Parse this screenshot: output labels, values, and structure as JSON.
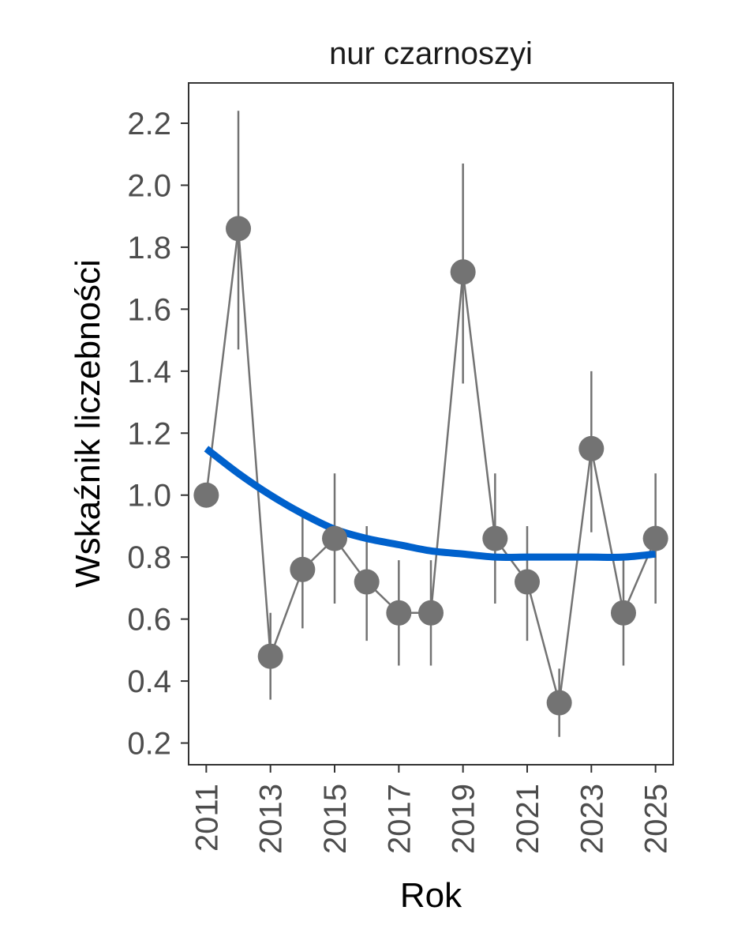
{
  "chart_data": {
    "type": "line",
    "title": "nur czarnoszyi",
    "xlabel": "Rok",
    "ylabel": "Wskaźnik liczebności",
    "xlim": [
      2010.45,
      2025.55
    ],
    "ylim": [
      0.13,
      2.33
    ],
    "x_ticks": [
      2011,
      2013,
      2015,
      2017,
      2019,
      2021,
      2023,
      2025
    ],
    "x_tick_labels": [
      "2011",
      "2013",
      "2015",
      "2017",
      "2019",
      "2021",
      "2023",
      "2025"
    ],
    "y_ticks": [
      0.2,
      0.4,
      0.6,
      0.8,
      1.0,
      1.2,
      1.4,
      1.6,
      1.8,
      2.0,
      2.2
    ],
    "y_tick_labels": [
      "0.2",
      "0.4",
      "0.6",
      "0.8",
      "1.0",
      "1.2",
      "1.4",
      "1.6",
      "1.8",
      "2.0",
      "2.2"
    ],
    "grid": false,
    "colors": {
      "points": "#737373",
      "trend": "#0061cc",
      "frame": "#333333"
    },
    "series": [
      {
        "type": "points_with_errorbars",
        "x": [
          2011,
          2012,
          2013,
          2014,
          2015,
          2016,
          2017,
          2018,
          2019,
          2020,
          2021,
          2022,
          2023,
          2024,
          2025
        ],
        "y": [
          1.0,
          1.86,
          0.48,
          0.76,
          0.86,
          0.72,
          0.62,
          0.62,
          1.72,
          0.86,
          0.72,
          0.33,
          1.15,
          0.62,
          0.86
        ],
        "lower": [
          null,
          1.47,
          0.34,
          0.57,
          0.65,
          0.53,
          0.45,
          0.45,
          1.36,
          0.65,
          0.53,
          0.22,
          0.88,
          0.45,
          0.65
        ],
        "upper": [
          null,
          2.24,
          0.62,
          0.95,
          1.07,
          0.9,
          0.79,
          0.79,
          2.07,
          1.07,
          0.9,
          0.44,
          1.4,
          0.79,
          1.07
        ]
      },
      {
        "type": "trend",
        "x": [
          2011,
          2012,
          2013,
          2014,
          2015,
          2016,
          2017,
          2018,
          2019,
          2020,
          2021,
          2022,
          2023,
          2024,
          2025
        ],
        "y": [
          1.15,
          1.07,
          1.0,
          0.94,
          0.89,
          0.86,
          0.84,
          0.82,
          0.81,
          0.8,
          0.8,
          0.8,
          0.8,
          0.8,
          0.81
        ]
      }
    ]
  }
}
